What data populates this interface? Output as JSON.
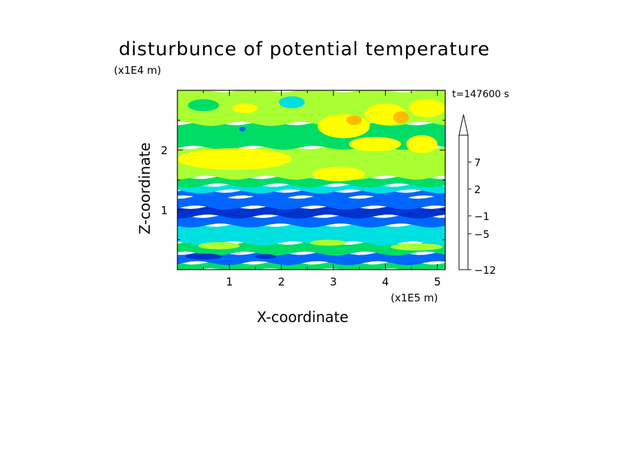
{
  "chart_data": {
    "type": "heatmap",
    "title": "disturbunce of potential temperature",
    "xlabel": "X-coordinate",
    "ylabel": "Z-coordinate",
    "x_scale_label": "(x1E5 m)",
    "y_scale_label": "(x1E4 m)",
    "annotation": "t=147600 s",
    "xlim": [
      0,
      5.15
    ],
    "ylim": [
      0,
      3.0
    ],
    "x_ticks": [
      1,
      2,
      3,
      4,
      5
    ],
    "y_ticks": [
      1,
      2
    ],
    "colorbar": {
      "levels": [
        -12,
        -11,
        -9,
        -7,
        -5,
        -3,
        -1,
        0,
        1,
        2,
        3,
        5,
        7,
        9,
        11
      ],
      "colors": [
        "#ff00cc",
        "#cc0099",
        "#7a1aa3",
        "#0000a0",
        "#0033cc",
        "#0066ff",
        "#00e0e0",
        "#00dd66",
        "#aaff33",
        "#ffff00",
        "#ffbb00",
        "#ff6600",
        "#ee0000",
        "#ff99aa",
        "#ffccdd"
      ],
      "tick_labels": [
        "7",
        "2",
        "−1",
        "−5",
        "−12"
      ],
      "tick_values": [
        7,
        2,
        -1,
        -5,
        -12
      ],
      "extend": "max"
    },
    "bands": [
      {
        "z": [
          0.0,
          0.12
        ],
        "level": 0.5
      },
      {
        "z": [
          0.12,
          0.28
        ],
        "level": -1.5
      },
      {
        "z": [
          0.28,
          0.45
        ],
        "level": 0.5
      },
      {
        "z": [
          0.45,
          0.75
        ],
        "level": -0.5
      },
      {
        "z": [
          0.75,
          0.9
        ],
        "level": -2.5
      },
      {
        "z": [
          0.9,
          1.05
        ],
        "level": -4.0
      },
      {
        "z": [
          1.05,
          1.22
        ],
        "level": -3.0
      },
      {
        "z": [
          1.22,
          1.32
        ],
        "level": -2.5
      },
      {
        "z": [
          1.32,
          1.42
        ],
        "level": -0.5
      },
      {
        "z": [
          1.42,
          1.55
        ],
        "level": 0.5
      },
      {
        "z": [
          1.55,
          2.05
        ],
        "level": 1.5
      },
      {
        "z": [
          2.05,
          2.45
        ],
        "level": 0.5
      },
      {
        "z": [
          2.45,
          3.0
        ],
        "level": 1.2
      }
    ],
    "features": [
      {
        "x": 1.1,
        "z": 1.85,
        "rx": 1.1,
        "rz": 0.18,
        "level": 2.5
      },
      {
        "x": 3.1,
        "z": 1.6,
        "rx": 0.5,
        "rz": 0.12,
        "level": 2.5
      },
      {
        "x": 3.2,
        "z": 2.4,
        "rx": 0.5,
        "rz": 0.2,
        "level": 2.5
      },
      {
        "x": 3.4,
        "z": 2.5,
        "rx": 0.15,
        "rz": 0.08,
        "level": 4.0
      },
      {
        "x": 4.0,
        "z": 2.6,
        "rx": 0.4,
        "rz": 0.18,
        "level": 2.5
      },
      {
        "x": 4.3,
        "z": 2.55,
        "rx": 0.15,
        "rz": 0.1,
        "level": 4.0
      },
      {
        "x": 4.7,
        "z": 2.1,
        "rx": 0.3,
        "rz": 0.15,
        "level": 2.5
      },
      {
        "x": 3.8,
        "z": 2.1,
        "rx": 0.5,
        "rz": 0.12,
        "level": 2.5
      },
      {
        "x": 4.8,
        "z": 2.7,
        "rx": 0.35,
        "rz": 0.15,
        "level": 2.5
      },
      {
        "x": 2.2,
        "z": 2.8,
        "rx": 0.25,
        "rz": 0.1,
        "level": -0.5
      },
      {
        "x": 0.5,
        "z": 2.75,
        "rx": 0.3,
        "rz": 0.1,
        "level": 0.5
      },
      {
        "x": 1.3,
        "z": 2.7,
        "rx": 0.25,
        "rz": 0.08,
        "level": 2.0
      },
      {
        "x": 1.25,
        "z": 2.35,
        "rx": 0.06,
        "rz": 0.04,
        "level": -3.0
      },
      {
        "x": 0.8,
        "z": 0.4,
        "rx": 0.4,
        "rz": 0.06,
        "level": 1.5
      },
      {
        "x": 4.6,
        "z": 0.38,
        "rx": 0.5,
        "rz": 0.06,
        "level": 1.5
      },
      {
        "x": 2.9,
        "z": 0.45,
        "rx": 0.35,
        "rz": 0.05,
        "level": 1.5
      },
      {
        "x": 0.5,
        "z": 0.22,
        "rx": 0.35,
        "rz": 0.05,
        "level": -4.0
      },
      {
        "x": 1.7,
        "z": 0.22,
        "rx": 0.2,
        "rz": 0.04,
        "level": -4.0
      }
    ]
  }
}
